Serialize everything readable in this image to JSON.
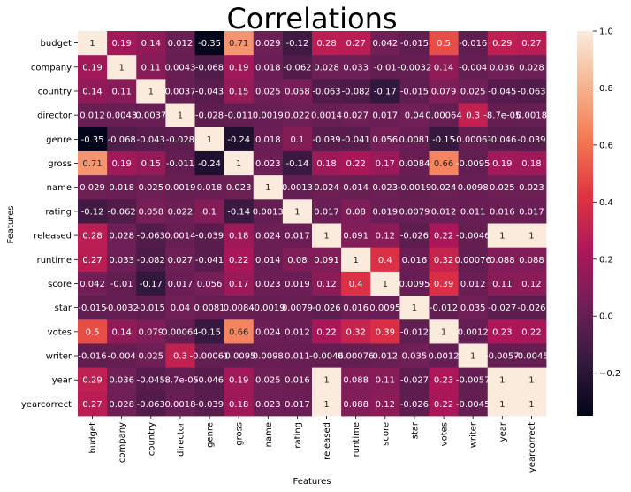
{
  "chart_data": {
    "type": "heatmap",
    "title": "Correlations",
    "xlabel": "Features",
    "ylabel": "Features",
    "labels": [
      "budget",
      "company",
      "country",
      "director",
      "genre",
      "gross",
      "name",
      "rating",
      "released",
      "runtime",
      "score",
      "star",
      "votes",
      "writer",
      "year",
      "yearcorrect"
    ],
    "values": [
      [
        1,
        0.19,
        0.14,
        0.012,
        -0.35,
        0.71,
        0.029,
        -0.12,
        0.28,
        0.27,
        0.042,
        -0.015,
        0.5,
        -0.016,
        0.29,
        0.27
      ],
      [
        0.19,
        1,
        0.11,
        0.0043,
        -0.068,
        0.19,
        0.018,
        -0.062,
        0.028,
        0.033,
        -0.01,
        -0.0032,
        0.14,
        -0.004,
        0.036,
        0.028
      ],
      [
        0.14,
        0.11,
        1,
        0.0037,
        -0.043,
        0.15,
        0.025,
        0.058,
        -0.063,
        -0.082,
        -0.17,
        -0.015,
        0.079,
        0.025,
        -0.045,
        -0.063
      ],
      [
        0.012,
        0.0043,
        0.0037,
        1,
        -0.028,
        -0.011,
        0.0019,
        0.022,
        0.0014,
        0.027,
        0.017,
        0.04,
        0.00064,
        0.3,
        -8.7e-05,
        0.0018
      ],
      [
        -0.35,
        -0.068,
        -0.043,
        -0.028,
        1,
        -0.24,
        0.018,
        0.1,
        -0.039,
        -0.041,
        0.056,
        0.0081,
        -0.15,
        -0.00061,
        -0.046,
        -0.039
      ],
      [
        0.71,
        0.19,
        0.15,
        -0.011,
        -0.24,
        1,
        0.023,
        -0.14,
        0.18,
        0.22,
        0.17,
        0.0084,
        0.66,
        -0.0095,
        0.19,
        0.18
      ],
      [
        0.029,
        0.018,
        0.025,
        0.0019,
        0.018,
        0.023,
        1,
        0.0013,
        0.024,
        0.014,
        0.023,
        -0.0019,
        0.024,
        0.0098,
        0.025,
        0.023
      ],
      [
        -0.12,
        -0.062,
        0.058,
        0.022,
        0.1,
        -0.14,
        0.0013,
        1,
        0.017,
        0.08,
        0.019,
        0.0079,
        0.012,
        0.011,
        0.016,
        0.017
      ],
      [
        0.28,
        0.028,
        -0.063,
        0.0014,
        -0.039,
        0.18,
        0.024,
        0.017,
        1,
        0.091,
        0.12,
        -0.026,
        0.22,
        -0.0046,
        1,
        1
      ],
      [
        0.27,
        0.033,
        -0.082,
        0.027,
        -0.041,
        0.22,
        0.014,
        0.08,
        0.091,
        1,
        0.4,
        0.016,
        0.32,
        0.00076,
        0.088,
        0.088
      ],
      [
        0.042,
        -0.01,
        -0.17,
        0.017,
        0.056,
        0.17,
        0.023,
        0.019,
        0.12,
        0.4,
        1,
        0.0095,
        0.39,
        0.012,
        0.11,
        0.12
      ],
      [
        -0.015,
        -0.0032,
        -0.015,
        0.04,
        0.0081,
        0.0084,
        -0.0019,
        0.0079,
        -0.026,
        0.016,
        0.0095,
        1,
        -0.012,
        0.035,
        -0.027,
        -0.026
      ],
      [
        0.5,
        0.14,
        0.079,
        0.00064,
        -0.15,
        0.66,
        0.024,
        0.012,
        0.22,
        0.32,
        0.39,
        -0.012,
        1,
        0.0012,
        0.23,
        0.22
      ],
      [
        -0.016,
        -0.004,
        0.025,
        0.3,
        -0.00061,
        -0.0095,
        0.0098,
        0.011,
        -0.0046,
        0.00076,
        0.012,
        0.035,
        0.0012,
        1,
        -0.0057,
        -0.0045
      ],
      [
        0.29,
        0.036,
        -0.045,
        -8.7e-05,
        -0.046,
        0.19,
        0.025,
        0.016,
        1,
        0.088,
        0.11,
        -0.027,
        0.23,
        -0.0057,
        1,
        1
      ],
      [
        0.27,
        0.028,
        -0.063,
        0.0018,
        -0.039,
        0.18,
        0.023,
        0.017,
        1,
        0.088,
        0.12,
        -0.026,
        0.22,
        -0.0045,
        1,
        1
      ]
    ],
    "annotations": [
      [
        "1",
        "0.19",
        "0.14",
        "0.012",
        "-0.35",
        "0.71",
        "0.029",
        "-0.12",
        "0.28",
        "0.27",
        "0.042",
        "-0.015",
        "0.5",
        "-0.016",
        "0.29",
        "0.27"
      ],
      [
        "0.19",
        "1",
        "0.11",
        "0.0043",
        "-0.068",
        "0.19",
        "0.018",
        "-0.062",
        "0.028",
        "0.033",
        "-0.01",
        "-0.0032",
        "0.14",
        "-0.004",
        "0.036",
        "0.028"
      ],
      [
        "0.14",
        "0.11",
        "1",
        "0.0037",
        "-0.043",
        "0.15",
        "0.025",
        "0.058",
        "-0.063",
        "-0.082",
        "-0.17",
        "-0.015",
        "0.079",
        "0.025",
        "-0.045",
        "-0.063"
      ],
      [
        "0.012",
        "0.0043",
        "0.0037",
        "1",
        "-0.028",
        "-0.011",
        "0.0019",
        "0.022",
        "0.0014",
        "0.027",
        "0.017",
        "0.04",
        "0.00064",
        "0.3",
        "-8.7e-05",
        "0.0018"
      ],
      [
        "-0.35",
        "-0.068",
        "-0.043",
        "-0.028",
        "1",
        "-0.24",
        "0.018",
        "0.1",
        "-0.039",
        "-0.041",
        "0.056",
        "0.0081",
        "-0.15",
        "-0.00061",
        "-0.046",
        "-0.039"
      ],
      [
        "0.71",
        "0.19",
        "0.15",
        "-0.011",
        "-0.24",
        "1",
        "0.023",
        "-0.14",
        "0.18",
        "0.22",
        "0.17",
        "0.0084",
        "0.66",
        "-0.0095",
        "0.19",
        "0.18"
      ],
      [
        "0.029",
        "0.018",
        "0.025",
        "0.0019",
        "0.018",
        "0.023",
        "1",
        "0.0013",
        "0.024",
        "0.014",
        "0.023",
        "-0.0019",
        "0.024",
        "0.0098",
        "0.025",
        "0.023"
      ],
      [
        "-0.12",
        "-0.062",
        "0.058",
        "0.022",
        "0.1",
        "-0.14",
        "0.0013",
        "1",
        "0.017",
        "0.08",
        "0.019",
        "0.0079",
        "0.012",
        "0.011",
        "0.016",
        "0.017"
      ],
      [
        "0.28",
        "0.028",
        "-0.063",
        "0.0014",
        "-0.039",
        "0.18",
        "0.024",
        "0.017",
        "1",
        "0.091",
        "0.12",
        "-0.026",
        "0.22",
        "-0.0046",
        "1",
        "1"
      ],
      [
        "0.27",
        "0.033",
        "-0.082",
        "0.027",
        "-0.041",
        "0.22",
        "0.014",
        "0.08",
        "0.091",
        "1",
        "0.4",
        "0.016",
        "0.32",
        "0.00076",
        "0.088",
        "0.088"
      ],
      [
        "0.042",
        "-0.01",
        "-0.17",
        "0.017",
        "0.056",
        "0.17",
        "0.023",
        "0.019",
        "0.12",
        "0.4",
        "1",
        "0.0095",
        "0.39",
        "0.012",
        "0.11",
        "0.12"
      ],
      [
        "-0.015",
        "-0.0032",
        "-0.015",
        "0.04",
        "0.0081",
        "0.0084",
        "-0.0019",
        "0.0079",
        "-0.026",
        "0.016",
        "0.0095",
        "1",
        "-0.012",
        "0.035",
        "-0.027",
        "-0.026"
      ],
      [
        "0.5",
        "0.14",
        "0.079",
        "0.00064",
        "-0.15",
        "0.66",
        "0.024",
        "0.012",
        "0.22",
        "0.32",
        "0.39",
        "-0.012",
        "1",
        "0.0012",
        "0.23",
        "0.22"
      ],
      [
        "-0.016",
        "-0.004",
        "0.025",
        "0.3",
        "-0.00061",
        "-0.0095",
        "0.0098",
        "0.011",
        "-0.0046",
        "0.00076",
        "0.012",
        "0.035",
        "0.0012",
        "1",
        "-0.0057",
        "-0.0045"
      ],
      [
        "0.29",
        "0.036",
        "-0.045",
        "-8.7e-05",
        "-0.046",
        "0.19",
        "0.025",
        "0.016",
        "1",
        "0.088",
        "0.11",
        "-0.027",
        "0.23",
        "-0.0057",
        "1",
        "1"
      ],
      [
        "0.27",
        "0.028",
        "-0.063",
        "0.0018",
        "-0.039",
        "0.18",
        "0.023",
        "0.017",
        "1",
        "0.088",
        "0.12",
        "-0.026",
        "0.22",
        "-0.0045",
        "1",
        "1"
      ]
    ],
    "colorbar": {
      "min": -0.35,
      "max": 1.0,
      "ticks": [
        -0.2,
        0.0,
        0.2,
        0.4,
        0.6,
        0.8,
        1.0
      ],
      "tick_labels": [
        "−0.2",
        "0.0",
        "0.2",
        "0.4",
        "0.6",
        "0.8",
        "1.0"
      ],
      "colormap": "rocket",
      "colors": [
        "#03051a",
        "#35193e",
        "#701f57",
        "#ad1759",
        "#e13342",
        "#f37651",
        "#f6b48f",
        "#faebdd"
      ]
    },
    "grid": false,
    "legend": "colorbar-right"
  }
}
